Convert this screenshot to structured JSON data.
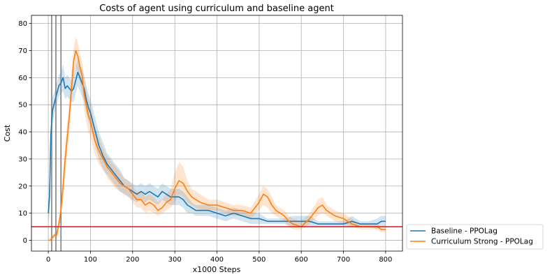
{
  "chart_data": {
    "type": "line",
    "title": "Costs of agent using curriculum and baseline agent",
    "xlabel": "x1000 Steps",
    "ylabel": "Cost",
    "xlim": [
      -40,
      840
    ],
    "ylim": [
      -4,
      83
    ],
    "xticks": [
      0,
      100,
      200,
      300,
      400,
      500,
      600,
      700,
      800
    ],
    "yticks": [
      0,
      10,
      20,
      30,
      40,
      50,
      60,
      70,
      80
    ],
    "grid": true,
    "legend_position": "outside-bottom-right",
    "threshold": {
      "y": 5,
      "color": "#d62728"
    },
    "curriculum_markers": {
      "x": [
        8,
        18,
        30
      ],
      "color": "#808080"
    },
    "series": [
      {
        "name": "Baseline - PPOLag",
        "color": "#1f77b4",
        "x": [
          0,
          3,
          6,
          10,
          15,
          20,
          25,
          30,
          35,
          40,
          45,
          50,
          55,
          60,
          65,
          70,
          75,
          80,
          85,
          90,
          95,
          100,
          110,
          120,
          130,
          140,
          150,
          160,
          170,
          180,
          190,
          200,
          210,
          220,
          230,
          240,
          250,
          260,
          270,
          280,
          290,
          300,
          310,
          320,
          330,
          340,
          350,
          360,
          380,
          400,
          420,
          440,
          460,
          480,
          500,
          520,
          540,
          560,
          580,
          600,
          620,
          640,
          660,
          680,
          700,
          720,
          740,
          760,
          780,
          790,
          800
        ],
        "values": [
          10,
          16,
          39,
          48,
          51,
          54,
          57,
          58,
          60,
          56,
          57,
          56,
          55,
          56,
          59,
          62,
          60,
          58,
          56,
          52,
          49,
          47,
          41,
          35,
          31,
          28,
          26,
          24,
          22,
          20,
          19,
          18,
          17,
          18,
          17,
          18,
          17,
          16,
          18,
          17,
          16,
          16,
          16,
          15,
          13,
          12,
          11,
          11,
          11,
          10,
          9,
          10,
          9,
          8,
          8,
          7,
          7,
          7,
          7,
          7,
          7,
          6,
          6,
          6,
          6,
          7,
          6,
          6,
          6,
          7,
          7
        ],
        "band_low": [
          6,
          10,
          33,
          43,
          47,
          50,
          53,
          54,
          55,
          52,
          53,
          52,
          51,
          51,
          54,
          57,
          55,
          53,
          51,
          47,
          44,
          42,
          36,
          30,
          26,
          24,
          22,
          20,
          18,
          17,
          16,
          15,
          14,
          15,
          14,
          15,
          14,
          13,
          15,
          14,
          13,
          13,
          13,
          12,
          10,
          10,
          9,
          9,
          9,
          8,
          7,
          8,
          7,
          6,
          6,
          6,
          6,
          6,
          5,
          5,
          5,
          5,
          5,
          5,
          5,
          5,
          5,
          5,
          4,
          5,
          5
        ],
        "band_high": [
          14,
          22,
          45,
          53,
          55,
          58,
          61,
          62,
          65,
          60,
          61,
          60,
          59,
          61,
          64,
          67,
          65,
          63,
          61,
          57,
          54,
          52,
          46,
          40,
          36,
          32,
          30,
          28,
          26,
          23,
          22,
          21,
          20,
          21,
          20,
          21,
          20,
          19,
          21,
          20,
          19,
          19,
          19,
          18,
          16,
          14,
          13,
          13,
          13,
          12,
          11,
          12,
          11,
          10,
          10,
          8,
          8,
          8,
          9,
          9,
          9,
          7,
          7,
          7,
          7,
          9,
          7,
          7,
          8,
          9,
          9
        ]
      },
      {
        "name": "Curriculum Strong - PPOLag",
        "color": "#ff7f0e",
        "x": [
          0,
          5,
          10,
          15,
          20,
          25,
          30,
          35,
          40,
          45,
          50,
          55,
          60,
          65,
          70,
          75,
          80,
          85,
          90,
          95,
          100,
          110,
          120,
          130,
          140,
          150,
          160,
          170,
          180,
          190,
          200,
          210,
          220,
          230,
          240,
          250,
          260,
          270,
          280,
          290,
          300,
          310,
          320,
          330,
          340,
          350,
          360,
          380,
          400,
          420,
          440,
          460,
          480,
          500,
          510,
          520,
          530,
          540,
          550,
          560,
          570,
          580,
          600,
          620,
          640,
          650,
          660,
          680,
          700,
          720,
          740,
          760,
          780,
          790,
          800
        ],
        "values": [
          0,
          0,
          1,
          2,
          2,
          6,
          11,
          20,
          30,
          38,
          46,
          56,
          66,
          70,
          68,
          64,
          61,
          54,
          50,
          46,
          44,
          37,
          33,
          30,
          27,
          25,
          23,
          21,
          20,
          19,
          17,
          15,
          15,
          13,
          14,
          13,
          11,
          12,
          14,
          15,
          19,
          22,
          21,
          18,
          16,
          15,
          14,
          13,
          13,
          12,
          11,
          11,
          10,
          14,
          17,
          16,
          13,
          11,
          10,
          9,
          7,
          6,
          5,
          8,
          12,
          13,
          11,
          9,
          8,
          6,
          5,
          5,
          5,
          4,
          4
        ],
        "band_low": [
          0,
          0,
          0,
          1,
          1,
          4,
          8,
          15,
          24,
          32,
          40,
          50,
          60,
          64,
          62,
          58,
          55,
          48,
          44,
          40,
          38,
          32,
          28,
          26,
          23,
          21,
          19,
          18,
          17,
          16,
          14,
          12,
          12,
          10,
          11,
          10,
          9,
          10,
          11,
          12,
          14,
          17,
          16,
          14,
          13,
          12,
          11,
          11,
          11,
          10,
          9,
          9,
          8,
          11,
          13,
          12,
          10,
          9,
          8,
          7,
          5,
          4,
          4,
          6,
          9,
          10,
          9,
          7,
          6,
          5,
          4,
          4,
          4,
          3,
          3
        ],
        "band_high": [
          0,
          1,
          2,
          3,
          4,
          8,
          14,
          25,
          36,
          44,
          52,
          62,
          71,
          75,
          73,
          69,
          66,
          60,
          56,
          52,
          50,
          42,
          38,
          34,
          31,
          29,
          27,
          25,
          23,
          22,
          20,
          18,
          18,
          16,
          17,
          16,
          14,
          15,
          17,
          19,
          25,
          29,
          27,
          22,
          19,
          18,
          17,
          15,
          15,
          14,
          13,
          13,
          12,
          17,
          20,
          19,
          16,
          13,
          12,
          11,
          9,
          8,
          7,
          10,
          15,
          16,
          13,
          11,
          10,
          8,
          6,
          6,
          6,
          5,
          5
        ]
      }
    ]
  }
}
